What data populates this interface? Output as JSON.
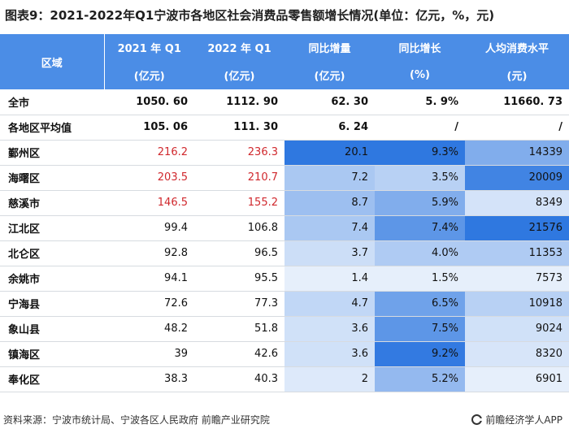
{
  "title": "图表9：2021-2022年Q1宁波市各地区社会消费品零售额增长情况(单位：亿元，%，元)",
  "header": {
    "region": "区域",
    "columns": [
      {
        "line1": "2021 年 Q1",
        "line2": "(亿元)"
      },
      {
        "line1": "2022 年 Q1",
        "line2": "(亿元)"
      },
      {
        "line1": "同比增量",
        "line2": "(亿元)"
      },
      {
        "line1": "同比增长",
        "line2": "(%)"
      },
      {
        "line1": "人均消费水平",
        "line2": "(元)"
      }
    ]
  },
  "colors": {
    "header_bg": "#4b8de6",
    "red_text": "#d0282d",
    "heat_max": "#2f78e0",
    "heat_min": "#ffffff"
  },
  "summary_rows": [
    {
      "name": "全市",
      "values": [
        "1050. 60",
        "1112. 90",
        "62. 30",
        "5. 9%",
        "11660. 73"
      ]
    },
    {
      "name": "各地区平均值",
      "values": [
        "105. 06",
        "111. 30",
        "6. 24",
        "/",
        "/"
      ]
    }
  ],
  "rows": [
    {
      "name": "鄞州区",
      "v2021": "216.2",
      "v2022": "236.3",
      "increment": "20.1",
      "growth": "9.3%",
      "per_capita": "14339",
      "red": true,
      "heat": {
        "increment": 1.0,
        "growth": 1.0,
        "per_capita": 0.55
      }
    },
    {
      "name": "海曙区",
      "v2021": "203.5",
      "v2022": "210.7",
      "increment": "7.2",
      "growth": "3.5%",
      "per_capita": "20009",
      "red": true,
      "heat": {
        "increment": 0.33,
        "growth": 0.25,
        "per_capita": 0.9
      }
    },
    {
      "name": "慈溪市",
      "v2021": "146.5",
      "v2022": "155.2",
      "increment": "8.7",
      "growth": "5.9%",
      "per_capita": "8349",
      "red": true,
      "heat": {
        "increment": 0.4,
        "growth": 0.55,
        "per_capita": 0.1
      }
    },
    {
      "name": "江北区",
      "v2021": "99.4",
      "v2022": "106.8",
      "increment": "7.4",
      "growth": "7.4%",
      "per_capita": "21576",
      "red": false,
      "heat": {
        "increment": 0.33,
        "growth": 0.75,
        "per_capita": 1.0
      }
    },
    {
      "name": "北仑区",
      "v2021": "92.8",
      "v2022": "96.5",
      "increment": "3.7",
      "growth": "4.0%",
      "per_capita": "11353",
      "red": false,
      "heat": {
        "increment": 0.14,
        "growth": 0.3,
        "per_capita": 0.3
      }
    },
    {
      "name": "余姚市",
      "v2021": "94.1",
      "v2022": "95.5",
      "increment": "1.4",
      "growth": "1.5%",
      "per_capita": "7573",
      "red": false,
      "heat": {
        "increment": 0.0,
        "growth": 0.0,
        "per_capita": 0.0
      }
    },
    {
      "name": "宁海县",
      "v2021": "72.6",
      "v2022": "77.3",
      "increment": "4.7",
      "growth": "6.5%",
      "per_capita": "10918",
      "red": false,
      "heat": {
        "increment": 0.2,
        "growth": 0.65,
        "per_capita": 0.25
      }
    },
    {
      "name": "象山县",
      "v2021": "48.2",
      "v2022": "51.8",
      "increment": "3.6",
      "growth": "7.5%",
      "per_capita": "9024",
      "red": false,
      "heat": {
        "increment": 0.12,
        "growth": 0.75,
        "per_capita": 0.12
      }
    },
    {
      "name": "镇海区",
      "v2021": "39",
      "v2022": "42.6",
      "increment": "3.6",
      "growth": "9.2%",
      "per_capita": "8320",
      "red": false,
      "heat": {
        "increment": 0.12,
        "growth": 0.98,
        "per_capita": 0.08
      }
    },
    {
      "name": "奉化区",
      "v2021": "38.3",
      "v2022": "40.3",
      "increment": "2",
      "growth": "5.2%",
      "per_capita": "6901",
      "red": false,
      "heat": {
        "increment": 0.05,
        "growth": 0.45,
        "per_capita": 0.0
      }
    }
  ],
  "footer": {
    "source": "资料来源：宁波市统计局、宁波各区人民政府 前瞻产业研究院",
    "brand": "前瞻经济学人APP"
  }
}
